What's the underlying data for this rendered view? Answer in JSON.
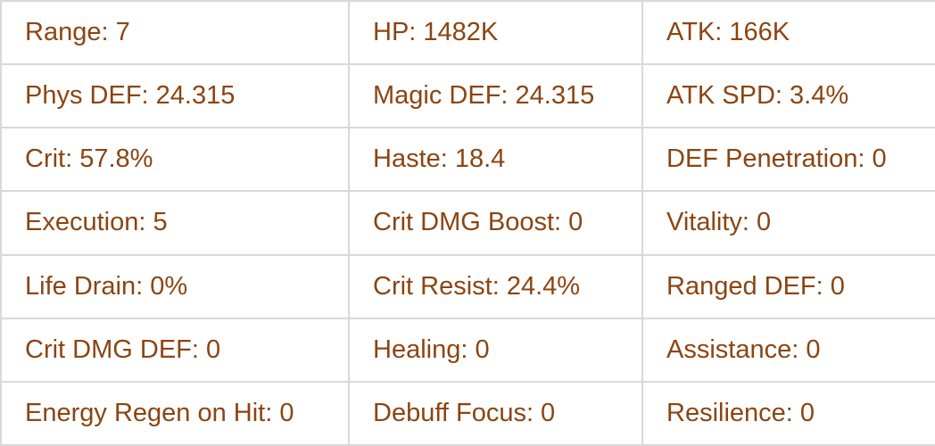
{
  "text_color": "#8b4513",
  "rows": [
    [
      "Range: 7",
      "HP: 1482K",
      "ATK: 166K"
    ],
    [
      "Phys DEF: 24.315",
      "Magic DEF: 24.315",
      "ATK SPD: 3.4%"
    ],
    [
      "Crit: 57.8%",
      "Haste: 18.4",
      "DEF Penetration: 0"
    ],
    [
      "Execution: 5",
      "Crit DMG Boost: 0",
      "Vitality: 0"
    ],
    [
      "Life Drain: 0%",
      "Crit Resist: 24.4%",
      "Ranged DEF: 0"
    ],
    [
      "Crit DMG DEF: 0",
      "Healing: 0",
      "Assistance: 0"
    ],
    [
      "Energy Regen on Hit: 0",
      "Debuff Focus: 0",
      "Resilience: 0"
    ]
  ]
}
